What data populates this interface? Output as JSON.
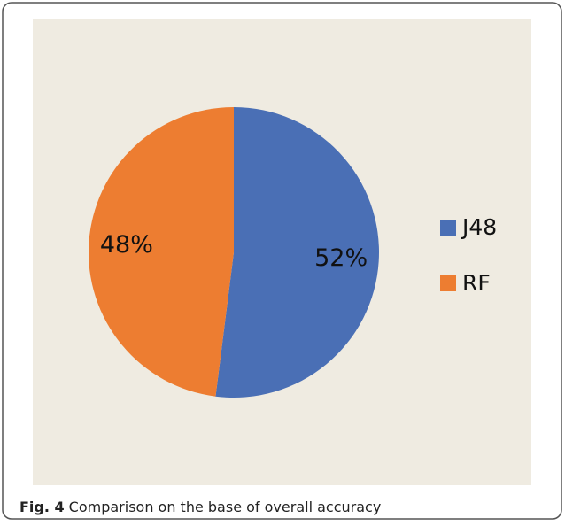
{
  "chart_data": {
    "type": "pie",
    "categories": [
      "J48",
      "RF"
    ],
    "values": [
      52,
      48
    ],
    "value_labels": [
      "52%",
      "48%"
    ],
    "colors": [
      "#4a6fb5",
      "#ed7d31"
    ],
    "legend": "right"
  },
  "caption": {
    "label": "Fig. 4",
    "text": "Comparison on the base of overall accuracy"
  }
}
